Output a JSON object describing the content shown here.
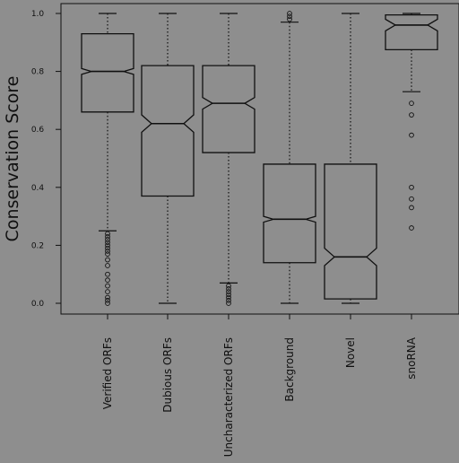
{
  "chart_data": {
    "type": "boxplot",
    "title": "",
    "xlabel": "",
    "ylabel": "Conservation Score",
    "ylim": [
      0.0,
      1.0
    ],
    "yticks": [
      0.0,
      0.2,
      0.4,
      0.6,
      0.8,
      1.0
    ],
    "ytick_labels": [
      "0.0",
      "0.2",
      "0.4",
      "0.6",
      "0.8",
      "1.0"
    ],
    "notched": true,
    "grid": false,
    "categories": [
      "Verified ORFs",
      "Dubious ORFs",
      "Uncharacterized ORFs",
      "Background",
      "Novel",
      "snoRNA"
    ],
    "boxes": [
      {
        "name": "Verified ORFs",
        "whisker_low": 0.25,
        "q1": 0.66,
        "median": 0.8,
        "q3": 0.93,
        "whisker_high": 1.0,
        "notch_low": 0.79,
        "notch_high": 0.81,
        "outliers": [
          0.24,
          0.23,
          0.22,
          0.21,
          0.2,
          0.19,
          0.18,
          0.17,
          0.15,
          0.13,
          0.1,
          0.08,
          0.06,
          0.04,
          0.02,
          0.01,
          0.0
        ]
      },
      {
        "name": "Dubious ORFs",
        "whisker_low": 0.0,
        "q1": 0.37,
        "median": 0.62,
        "q3": 0.82,
        "whisker_high": 1.0,
        "notch_low": 0.59,
        "notch_high": 0.65,
        "outliers": []
      },
      {
        "name": "Uncharacterized ORFs",
        "whisker_low": 0.07,
        "q1": 0.52,
        "median": 0.69,
        "q3": 0.82,
        "whisker_high": 1.0,
        "notch_low": 0.67,
        "notch_high": 0.71,
        "outliers": [
          0.06,
          0.05,
          0.04,
          0.03,
          0.02,
          0.01,
          0.0
        ]
      },
      {
        "name": "Background",
        "whisker_low": 0.0,
        "q1": 0.14,
        "median": 0.29,
        "q3": 0.48,
        "whisker_high": 0.97,
        "notch_low": 0.28,
        "notch_high": 0.3,
        "outliers": [
          0.98,
          0.99,
          1.0
        ]
      },
      {
        "name": "Novel",
        "whisker_low": 0.0,
        "q1": 0.015,
        "median": 0.16,
        "q3": 0.48,
        "whisker_high": 1.0,
        "notch_low": 0.13,
        "notch_high": 0.19,
        "outliers": []
      },
      {
        "name": "snoRNA",
        "whisker_low": 0.73,
        "q1": 0.875,
        "median": 0.96,
        "q3": 0.995,
        "whisker_high": 1.0,
        "notch_low": 0.94,
        "notch_high": 0.98,
        "outliers": [
          0.69,
          0.65,
          0.58,
          0.4,
          0.36,
          0.33,
          0.26
        ]
      }
    ]
  },
  "colors": {
    "background": "#8e8e8e",
    "ink": "#101010"
  }
}
